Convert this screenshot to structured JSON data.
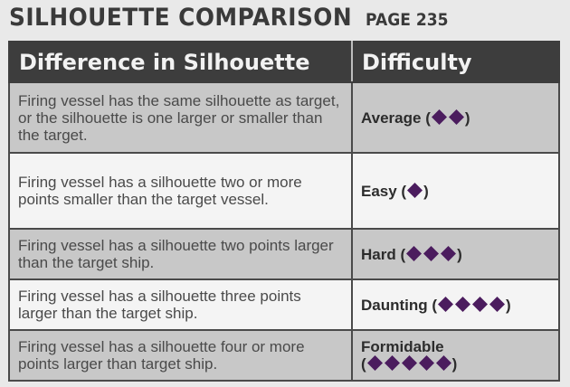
{
  "header": {
    "title": "SILHOUETTE COMPARISON",
    "page_ref": "PAGE 235"
  },
  "table": {
    "columns": [
      "Difference in Silhouette",
      "Difficulty"
    ],
    "rows": [
      {
        "condition": "Firing vessel has the same silhouette as target, or the silhouette is one larger or smaller than the target.",
        "difficulty": "Average",
        "dice_count": 2
      },
      {
        "condition": "Firing vessel has a silhouette two or more points smaller than the target vessel.",
        "difficulty": "Easy",
        "dice_count": 1
      },
      {
        "condition": "Firing vessel has a silhouette two points larger than the target ship.",
        "difficulty": "Hard",
        "dice_count": 3
      },
      {
        "condition": "Firing vessel has a silhouette three points larger than the target ship.",
        "difficulty": "Daunting",
        "dice_count": 4
      },
      {
        "condition": "Firing vessel has a silhouette four or more points larger than target ship.",
        "difficulty": "Formidable",
        "dice_count": 5
      }
    ]
  },
  "colors": {
    "header_bg": "#3d3d3d",
    "shaded_row": "#c8c8c8",
    "light_row": "#f4f4f4",
    "difficulty_die": "#4b1c5e"
  },
  "icons": {
    "difficulty_die": "purple-diamond-difficulty-die-icon"
  }
}
